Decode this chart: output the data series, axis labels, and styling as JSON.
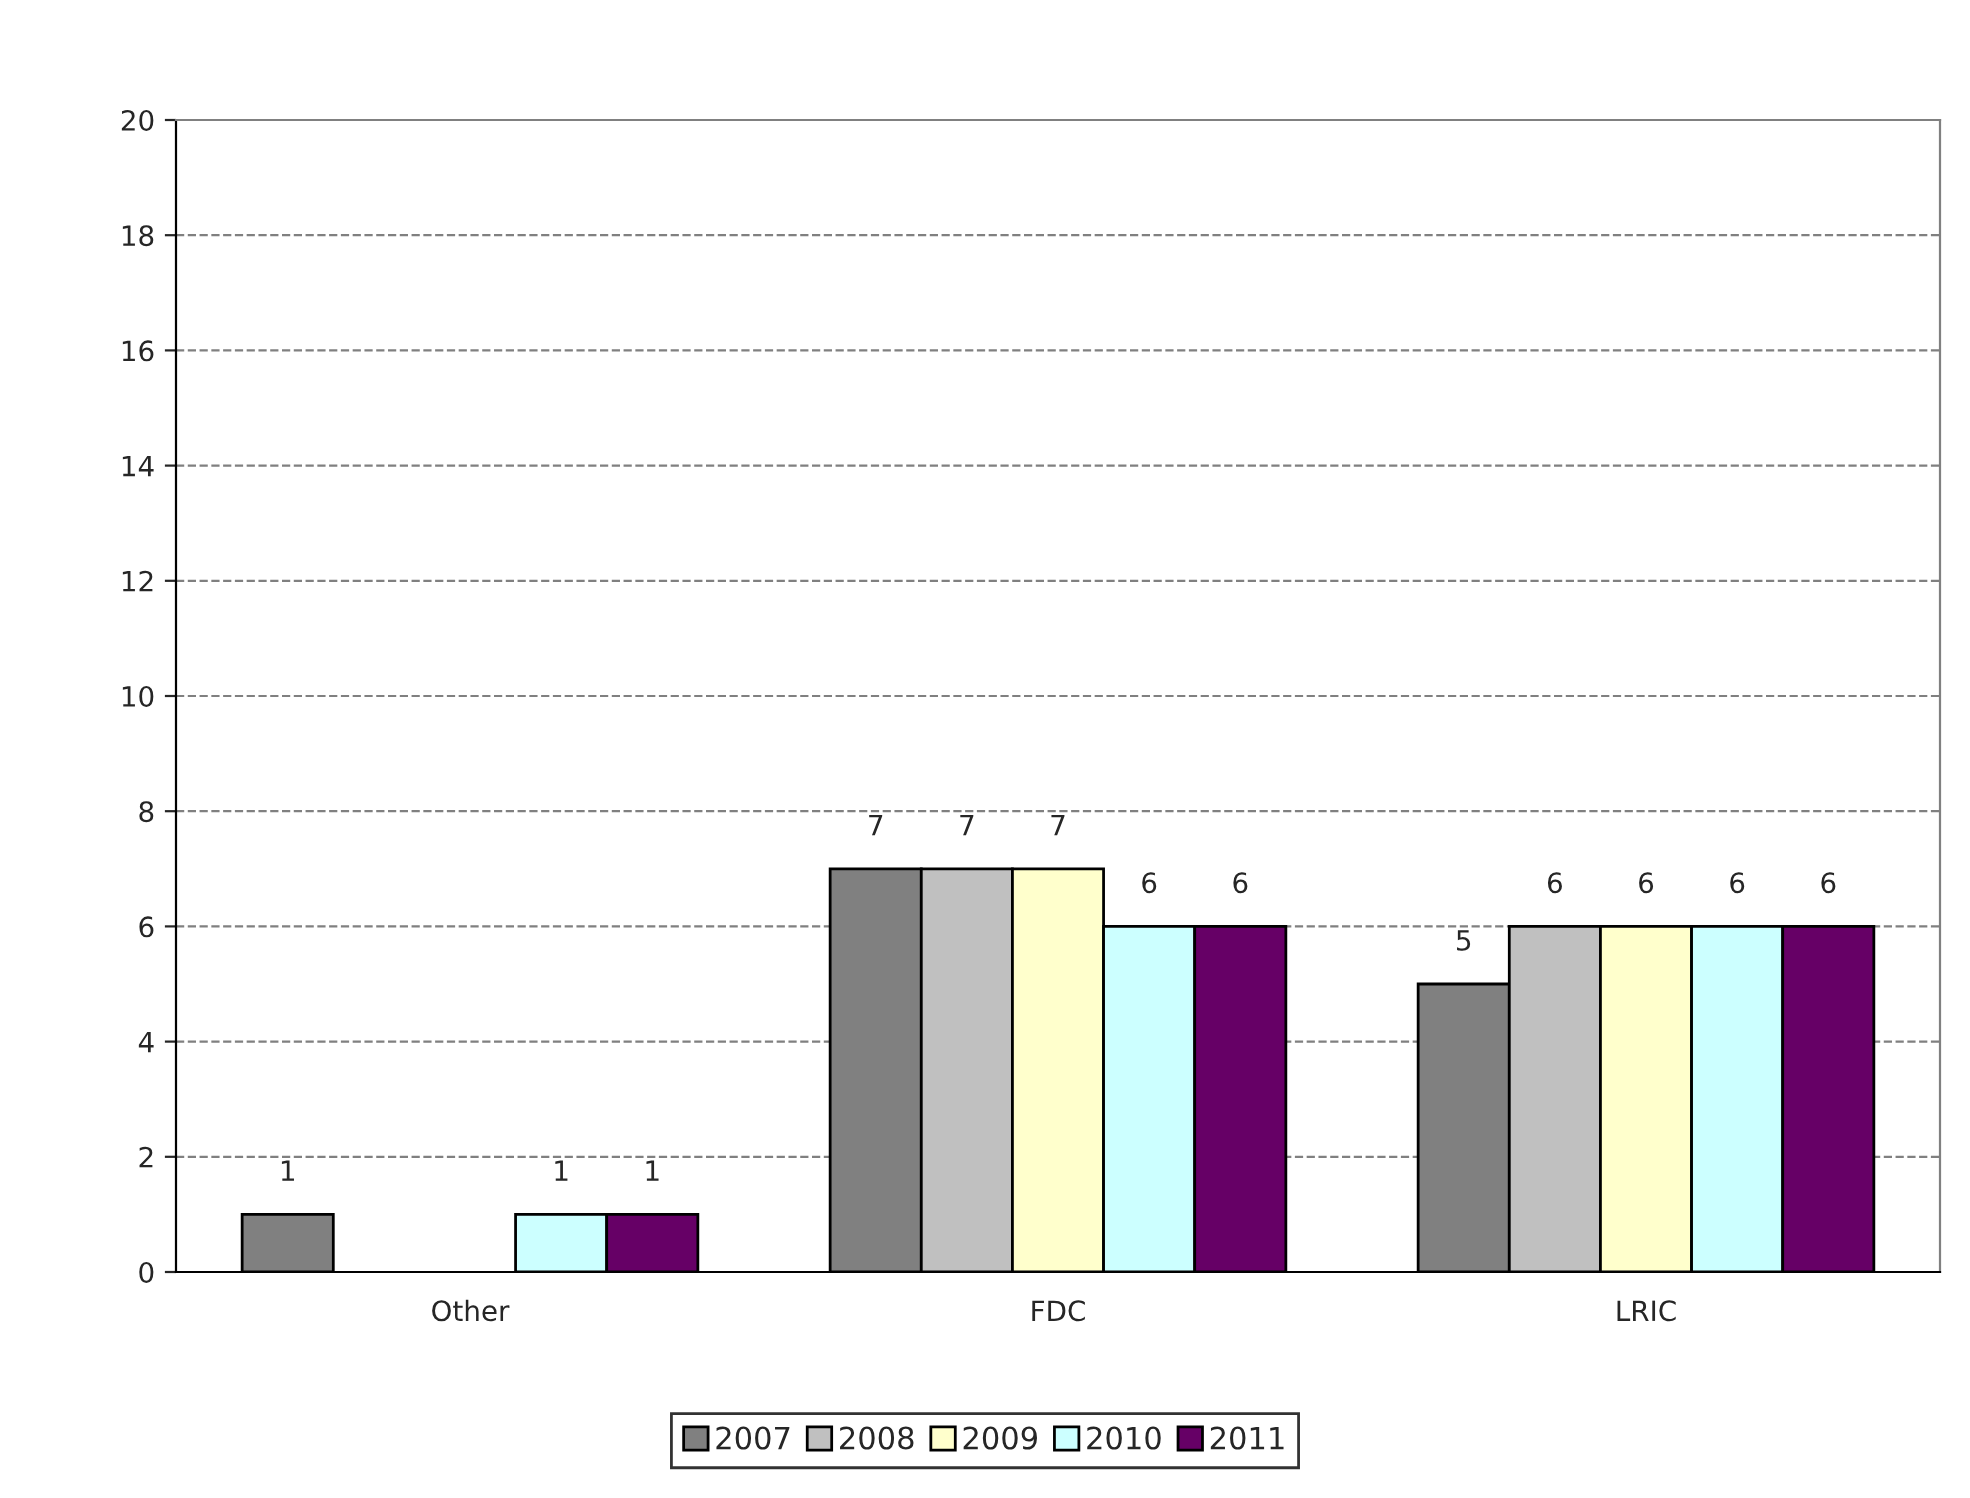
{
  "chart_data": {
    "type": "bar",
    "categories": [
      "Other",
      "FDC",
      "LRIC"
    ],
    "series": [
      {
        "name": "2007",
        "color": "#808080",
        "values": [
          1,
          7,
          5
        ]
      },
      {
        "name": "2008",
        "color": "#c0c0c0",
        "values": [
          null,
          7,
          6
        ]
      },
      {
        "name": "2009",
        "color": "#ffffcc",
        "values": [
          null,
          7,
          6
        ]
      },
      {
        "name": "2010",
        "color": "#ccffff",
        "values": [
          1,
          6,
          6
        ]
      },
      {
        "name": "2011",
        "color": "#660066",
        "values": [
          1,
          6,
          6
        ]
      }
    ],
    "ylim": [
      0,
      20
    ],
    "yticks": [
      0,
      2,
      4,
      6,
      8,
      10,
      12,
      14,
      16,
      18,
      20
    ],
    "grid": "y",
    "legend": "bottom",
    "data_labels": true
  }
}
